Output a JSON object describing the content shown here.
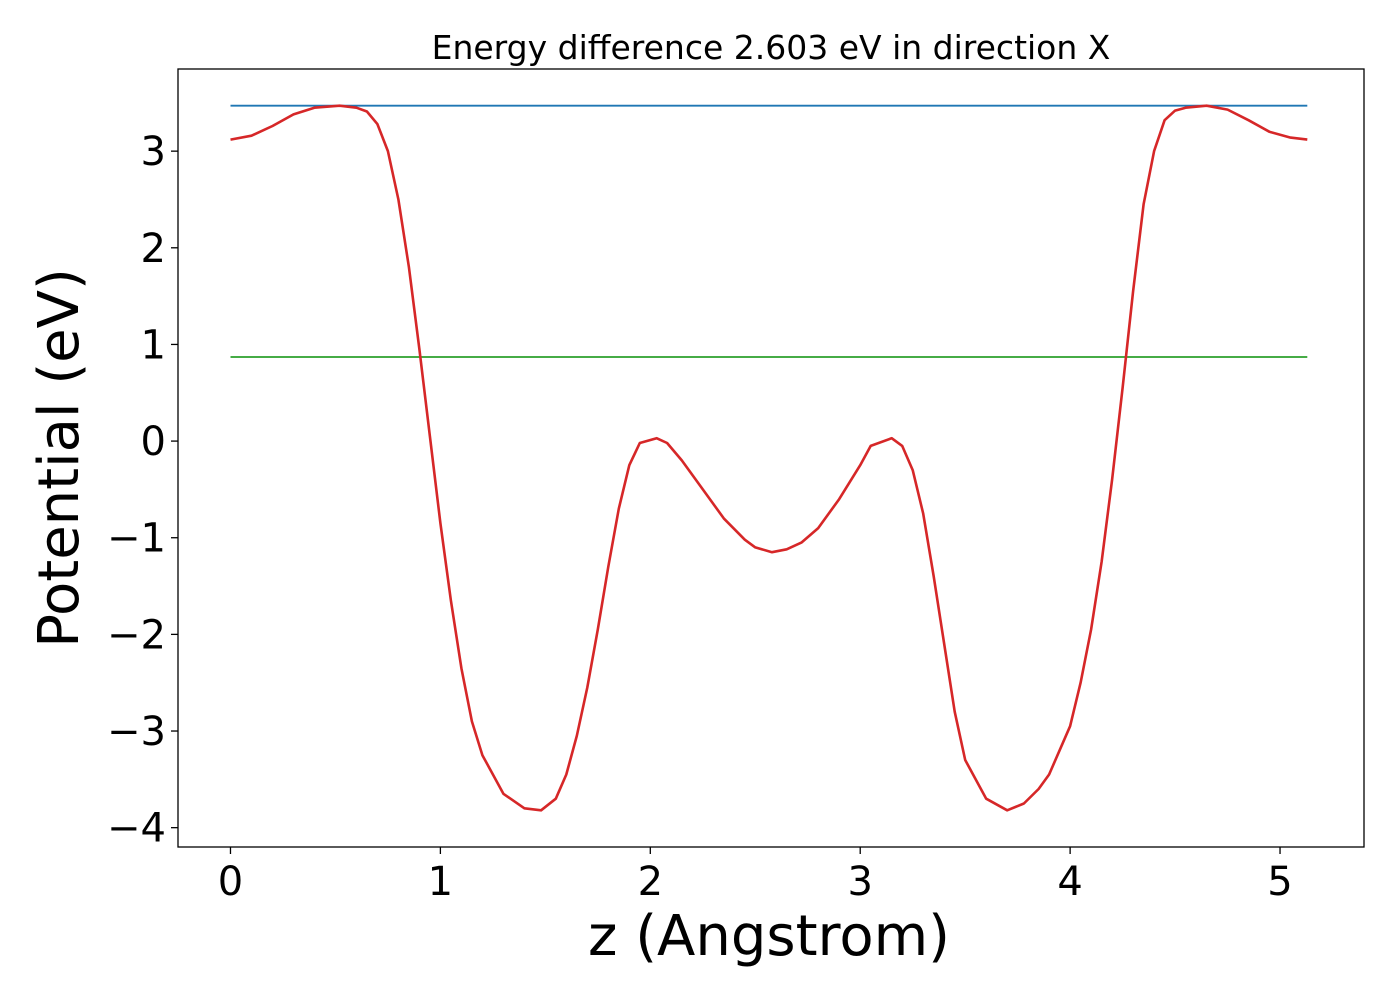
{
  "chart_data": {
    "type": "line",
    "title": "Energy difference 2.603 eV in direction X",
    "xlabel": "z (Angstrom)",
    "ylabel": "Potential (eV)",
    "xlim": [
      -0.25,
      5.4
    ],
    "ylim": [
      -4.2,
      3.85
    ],
    "xticks": [
      0,
      1,
      2,
      3,
      4,
      5
    ],
    "xtick_labels": [
      "0",
      "1",
      "2",
      "3",
      "4",
      "5"
    ],
    "yticks": [
      3,
      2,
      1,
      0,
      -1,
      -2,
      -3,
      -4
    ],
    "ytick_labels": [
      "3",
      "2",
      "1",
      "0",
      "−1",
      "−2",
      "−3",
      "−4"
    ],
    "grid": false,
    "series": [
      {
        "color": "#1f77b4",
        "x": [
          0,
          5.13
        ],
        "y": [
          3.47,
          3.47
        ]
      },
      {
        "color": "#2ca02c",
        "x": [
          0,
          5.13
        ],
        "y": [
          0.87,
          0.87
        ]
      },
      {
        "color": "#d62728",
        "x": [
          0,
          0.1,
          0.2,
          0.3,
          0.4,
          0.52,
          0.6,
          0.65,
          0.7,
          0.75,
          0.8,
          0.85,
          0.9,
          0.95,
          1.0,
          1.05,
          1.1,
          1.15,
          1.2,
          1.3,
          1.4,
          1.48,
          1.55,
          1.6,
          1.65,
          1.7,
          1.75,
          1.8,
          1.85,
          1.9,
          1.95,
          2.03,
          2.08,
          2.15,
          2.25,
          2.35,
          2.45,
          2.5,
          2.58,
          2.65,
          2.72,
          2.8,
          2.9,
          3.0,
          3.05,
          3.15,
          3.2,
          3.25,
          3.3,
          3.35,
          3.4,
          3.45,
          3.5,
          3.6,
          3.7,
          3.78,
          3.85,
          3.9,
          4.0,
          4.05,
          4.1,
          4.15,
          4.2,
          4.25,
          4.3,
          4.35,
          4.4,
          4.45,
          4.5,
          4.55,
          4.65,
          4.75,
          4.85,
          4.95,
          5.05,
          5.13
        ],
        "y": [
          3.12,
          3.16,
          3.26,
          3.38,
          3.45,
          3.47,
          3.45,
          3.41,
          3.28,
          3.0,
          2.5,
          1.8,
          0.95,
          0.05,
          -0.85,
          -1.65,
          -2.35,
          -2.9,
          -3.25,
          -3.65,
          -3.8,
          -3.82,
          -3.7,
          -3.45,
          -3.05,
          -2.55,
          -1.95,
          -1.3,
          -0.7,
          -0.25,
          -0.02,
          0.03,
          -0.02,
          -0.2,
          -0.5,
          -0.8,
          -1.02,
          -1.1,
          -1.15,
          -1.12,
          -1.05,
          -0.9,
          -0.6,
          -0.25,
          -0.05,
          0.03,
          -0.05,
          -0.3,
          -0.75,
          -1.4,
          -2.1,
          -2.8,
          -3.3,
          -3.7,
          -3.82,
          -3.75,
          -3.6,
          -3.45,
          -2.95,
          -2.5,
          -1.95,
          -1.25,
          -0.4,
          0.55,
          1.55,
          2.45,
          3.0,
          3.32,
          3.42,
          3.45,
          3.47,
          3.43,
          3.32,
          3.2,
          3.14,
          3.12
        ]
      }
    ]
  }
}
